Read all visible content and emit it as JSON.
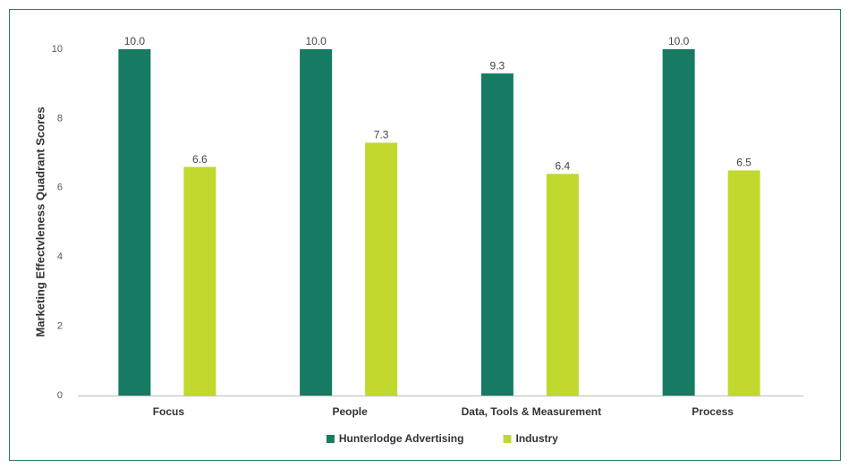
{
  "chart_data": {
    "type": "bar",
    "y_label": "Marketing Effectvleness Quadrant Scores",
    "categories": [
      "Focus",
      "People",
      "Data, Tools & Measurement",
      "Process"
    ],
    "series": [
      {
        "name": "Hunterlodge Advertising",
        "color": "#177a63",
        "values": [
          10,
          10,
          9.3,
          10
        ],
        "value_labels": [
          "10.0",
          "10.0",
          "9.3",
          "10.0"
        ]
      },
      {
        "name": "Industry",
        "color": "#c2d82e",
        "values": [
          6.6,
          7.3,
          6.4,
          6.5
        ]
      }
    ],
    "ylim": [
      0,
      10
    ],
    "yticks": [
      0,
      2,
      4,
      6,
      8,
      10
    ],
    "grid": false,
    "legend": "bottom"
  }
}
